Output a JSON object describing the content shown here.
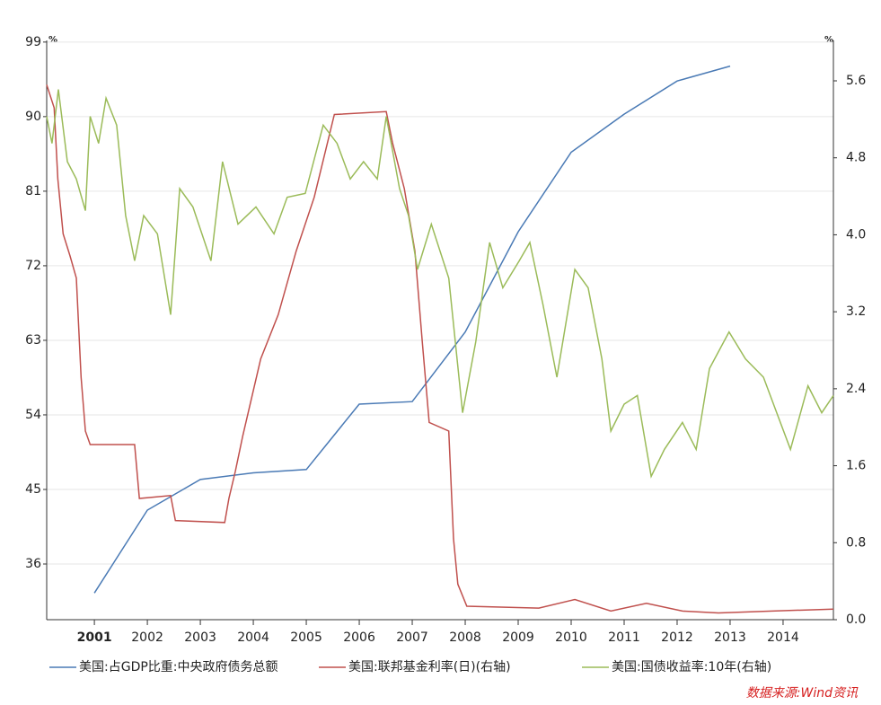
{
  "chart_data": {
    "type": "line",
    "y_unit": "%",
    "y2_unit": "%",
    "xlim": [
      2000.1,
      2014.95
    ],
    "xticks": [
      2001,
      2002,
      2003,
      2004,
      2005,
      2006,
      2007,
      2008,
      2009,
      2010,
      2011,
      2012,
      2013,
      2014
    ],
    "ylim": [
      29.28,
      99.2
    ],
    "yticks": [
      36,
      45,
      54,
      63,
      72,
      81,
      90,
      99
    ],
    "y2lim": [
      0,
      6.02
    ],
    "y2ticks": [
      {
        "value": 0,
        "label": "0.0"
      },
      0.8,
      1.6,
      2.4,
      3.2,
      {
        "value": 4,
        "label": "4.0"
      },
      4.8,
      5.6
    ],
    "grid": true,
    "legend": "bottom",
    "source": "数据来源:Wind资讯",
    "series": [
      {
        "name": "美国:占GDP比重:中央政府债务总额",
        "color": "#4a7ab5",
        "x": [
          2001,
          2002,
          2003,
          2004,
          2005,
          2006,
          2007,
          2008,
          2009,
          2010,
          2011,
          2012,
          2013
        ],
        "values": [
          32.5,
          42.5,
          46.2,
          47.0,
          47.4,
          55.3,
          55.6,
          64.0,
          76.1,
          85.7,
          90.3,
          94.3,
          96.1
        ]
      },
      {
        "name": "美国:联邦基金利率(日)(右轴)",
        "color": "#c0504d",
        "axis": "y2",
        "x": [
          2000.1,
          2000.24,
          2000.31,
          2000.41,
          2000.54,
          2000.66,
          2000.75,
          2000.83,
          2000.92,
          2001.76,
          2001.85,
          2002.44,
          2002.53,
          2003.46,
          2003.54,
          2003.66,
          2003.8,
          2004.14,
          2004.47,
          2004.81,
          2005.15,
          2005.53,
          2006.51,
          2006.63,
          2006.85,
          2007.05,
          2007.19,
          2007.32,
          2007.69,
          2007.78,
          2007.86,
          2008.03,
          2009.39,
          2010.07,
          2010.75,
          2011.42,
          2012.1,
          2012.78,
          2013.8,
          2014.95
        ],
        "values": [
          5.56,
          5.32,
          4.58,
          4.01,
          3.78,
          3.55,
          2.52,
          1.96,
          1.82,
          1.82,
          1.26,
          1.29,
          1.03,
          1.01,
          1.26,
          1.54,
          1.91,
          2.71,
          3.17,
          3.83,
          4.39,
          5.25,
          5.28,
          4.95,
          4.48,
          3.83,
          2.89,
          2.05,
          1.96,
          0.84,
          0.37,
          0.14,
          0.12,
          0.21,
          0.09,
          0.17,
          0.09,
          0.07,
          0.09,
          0.11
        ]
      },
      {
        "name": "美国:国债收益率:10年(右轴)",
        "color": "#9bbb59",
        "axis": "y2",
        "x": [
          2000.1,
          2000.2,
          2000.32,
          2000.49,
          2000.66,
          2000.83,
          2000.92,
          2001.08,
          2001.22,
          2001.42,
          2001.59,
          2001.76,
          2001.93,
          2002.19,
          2002.44,
          2002.61,
          2002.86,
          2003.2,
          2003.42,
          2003.71,
          2004.05,
          2004.39,
          2004.64,
          2004.98,
          2005.32,
          2005.58,
          2005.83,
          2006.08,
          2006.34,
          2006.51,
          2006.76,
          2006.93,
          2007.1,
          2007.36,
          2007.69,
          2007.95,
          2008.2,
          2008.46,
          2008.71,
          2009.02,
          2009.22,
          2009.47,
          2009.73,
          2010.07,
          2010.32,
          2010.58,
          2010.75,
          2011.0,
          2011.25,
          2011.51,
          2011.76,
          2012.1,
          2012.36,
          2012.61,
          2012.98,
          2013.29,
          2013.63,
          2013.88,
          2014.14,
          2014.47,
          2014.73,
          2014.95
        ],
        "values": [
          5.23,
          4.95,
          5.51,
          4.76,
          4.58,
          4.25,
          5.23,
          4.95,
          5.42,
          5.14,
          4.2,
          3.73,
          4.2,
          4.01,
          3.17,
          4.48,
          4.29,
          3.73,
          4.76,
          4.11,
          4.29,
          4.01,
          4.39,
          4.43,
          5.14,
          4.95,
          4.58,
          4.76,
          4.58,
          5.23,
          4.48,
          4.2,
          3.64,
          4.11,
          3.55,
          2.15,
          2.89,
          3.92,
          3.45,
          3.73,
          3.92,
          3.27,
          2.52,
          3.64,
          3.45,
          2.71,
          1.96,
          2.24,
          2.33,
          1.49,
          1.77,
          2.05,
          1.77,
          2.61,
          2.99,
          2.71,
          2.52,
          2.15,
          1.77,
          2.43,
          2.15,
          2.33
        ]
      }
    ]
  }
}
